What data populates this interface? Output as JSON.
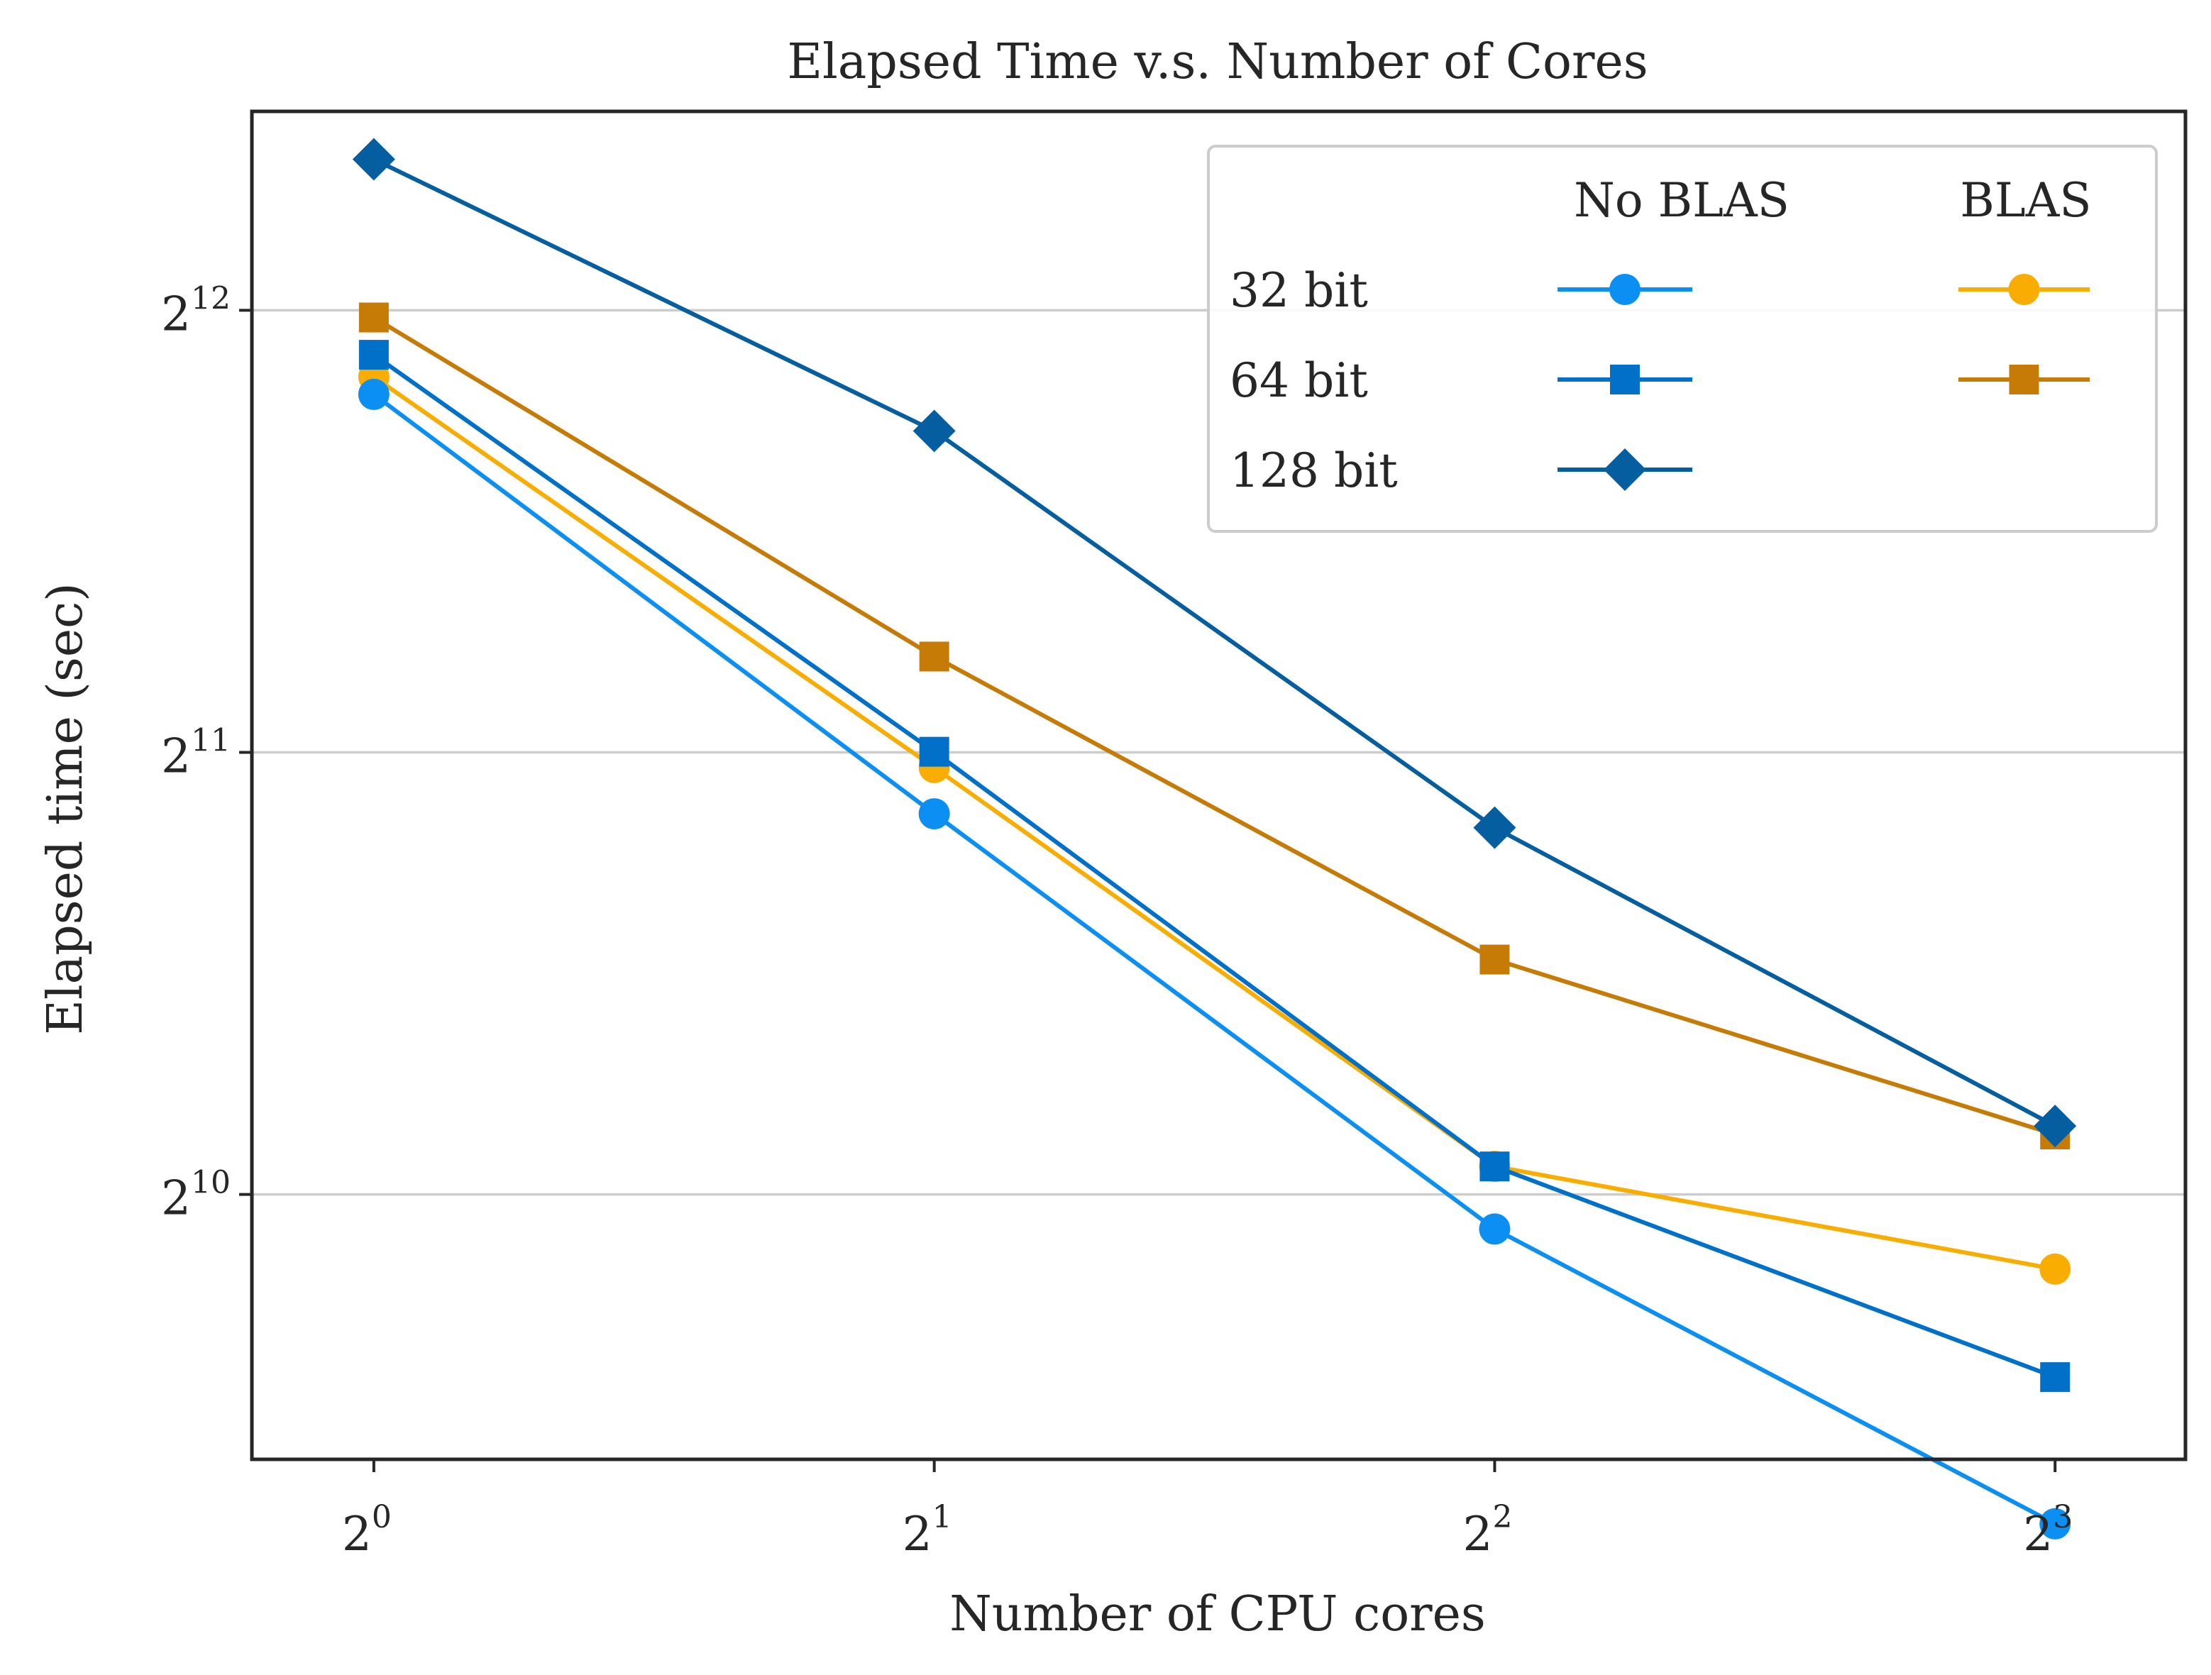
{
  "chart_data": {
    "type": "line",
    "title": "Elapsed Time v.s. Number of Cores",
    "xlabel": "Number of CPU cores",
    "ylabel": "Elapsed time (sec)",
    "xscale": "log2",
    "yscale": "log2",
    "x": [
      1,
      2,
      4,
      8
    ],
    "xticks": [
      {
        "value": 1,
        "base": "2",
        "exp": "0"
      },
      {
        "value": 2,
        "base": "2",
        "exp": "1"
      },
      {
        "value": 4,
        "base": "2",
        "exp": "2"
      },
      {
        "value": 8,
        "base": "2",
        "exp": "3"
      }
    ],
    "yticks": [
      {
        "value": 1024,
        "base": "2",
        "exp": "10"
      },
      {
        "value": 2048,
        "base": "2",
        "exp": "11"
      },
      {
        "value": 4096,
        "base": "2",
        "exp": "12"
      }
    ],
    "xlim": [
      0.86,
      9.4
    ],
    "ylim": [
      676,
      5595
    ],
    "grid": "horizontal",
    "legend": {
      "placement": "top-right",
      "col_headers": [
        "No BLAS",
        "BLAS"
      ],
      "row_labels": [
        "32 bit",
        "64 bit",
        "128 bit"
      ]
    },
    "series": [
      {
        "precision": "32 bit",
        "blas": "No BLAS",
        "color": "#0c8ff2",
        "marker": "circle",
        "values": [
          3590,
          1860,
          970,
          611
        ]
      },
      {
        "precision": "64 bit",
        "blas": "No BLAS",
        "color": "#0070c8",
        "marker": "square",
        "values": [
          3820,
          2050,
          1070,
          769
        ]
      },
      {
        "precision": "128 bit",
        "blas": "No BLAS",
        "color": "#055ea0",
        "marker": "diamond",
        "values": [
          5190,
          3390,
          1820,
          1140
        ]
      },
      {
        "precision": "32 bit",
        "blas": "BLAS",
        "color": "#f8ad00",
        "marker": "circle",
        "values": [
          3690,
          2000,
          1070,
          911
        ]
      },
      {
        "precision": "64 bit",
        "blas": "BLAS",
        "color": "#c77b07",
        "marker": "square",
        "values": [
          4050,
          2380,
          1480,
          1125
        ]
      }
    ]
  }
}
